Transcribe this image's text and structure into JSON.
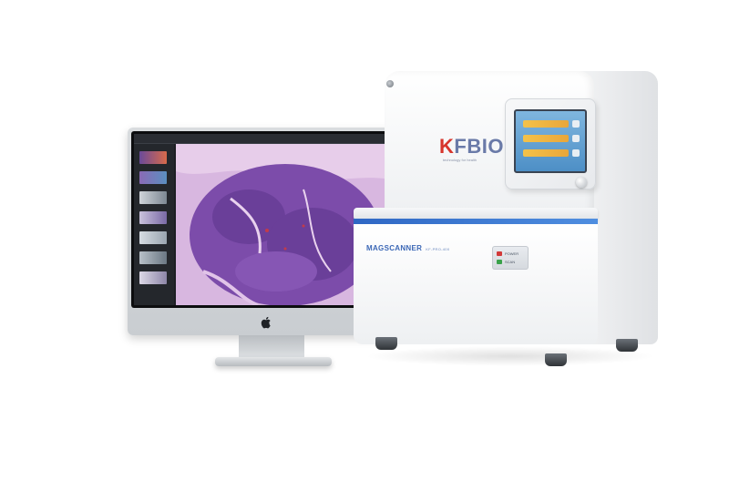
{
  "scanner": {
    "brand": "FBIO",
    "brand_initial": "K",
    "brand_tagline": "technology for health",
    "model": "MAGSCANNER",
    "model_sub": "KF-PRO-400",
    "buttons": [
      {
        "label": "POWER",
        "color": "#d23a3a"
      },
      {
        "label": "SCAN",
        "color": "#3aa24a"
      }
    ]
  },
  "monitor": {
    "app": "slide-viewer",
    "logo_icon": "apple-logo"
  },
  "colors": {
    "stain_background": "#c8a6d6",
    "stain_cells": "#6a3f99",
    "accent_blue": "#3b67b6"
  }
}
